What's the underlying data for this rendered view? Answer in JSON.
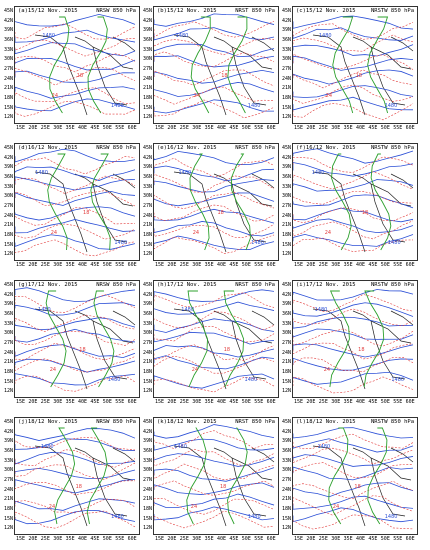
{
  "panels": [
    {
      "title_left": "(a)15/12 Nov. 2015",
      "title_right": "NRSW 850 hPa"
    },
    {
      "title_left": "(b)15/12 Nov. 2015",
      "title_right": "NRST 850 hPa"
    },
    {
      "title_left": "(c)15/12 Nov. 2015",
      "title_right": "NRSTW 850 hPa"
    },
    {
      "title_left": "(d)16/12 Nov. 2015",
      "title_right": "NRSW 850 hPa"
    },
    {
      "title_left": "(e)16/12 Nov. 2015",
      "title_right": "NRST 850 hPa"
    },
    {
      "title_left": "(f)16/12 Nov. 2015",
      "title_right": "NRSTW 850 hPa"
    },
    {
      "title_left": "(g)17/12 Nov. 2015",
      "title_right": "NRSW 850 hPa"
    },
    {
      "title_left": "(h)17/12 Nov. 2015",
      "title_right": "NRST 850 hPa"
    },
    {
      "title_left": "(i)17/12 Nov. 2015",
      "title_right": "NRSTW 850 hPa"
    },
    {
      "title_left": "(j)18/12 Nov. 2015",
      "title_right": "NRSW 850 hPa"
    },
    {
      "title_left": "(k)18/12 Nov. 2015",
      "title_right": "NRST 850 hPa"
    },
    {
      "title_left": "(l)18/12 Nov. 2015",
      "title_right": "NRSTW 850 hPa"
    }
  ],
  "lat_labels": [
    "45N",
    "42N",
    "39N",
    "36N",
    "33N",
    "30N",
    "27N",
    "24N",
    "21N",
    "18N",
    "15N",
    "12N"
  ],
  "lon_labels": [
    "15E",
    "20E",
    "25E",
    "30E",
    "35E",
    "40E",
    "45E",
    "50E",
    "55E",
    "60E"
  ],
  "contour_values": {
    "height": "1480",
    "temp_a": "18",
    "temp_b": "24"
  },
  "colors": {
    "height": "#2b4fd6",
    "temperature": "#e23b3b",
    "wind": "#2ca02c",
    "coast": "#222222"
  }
}
